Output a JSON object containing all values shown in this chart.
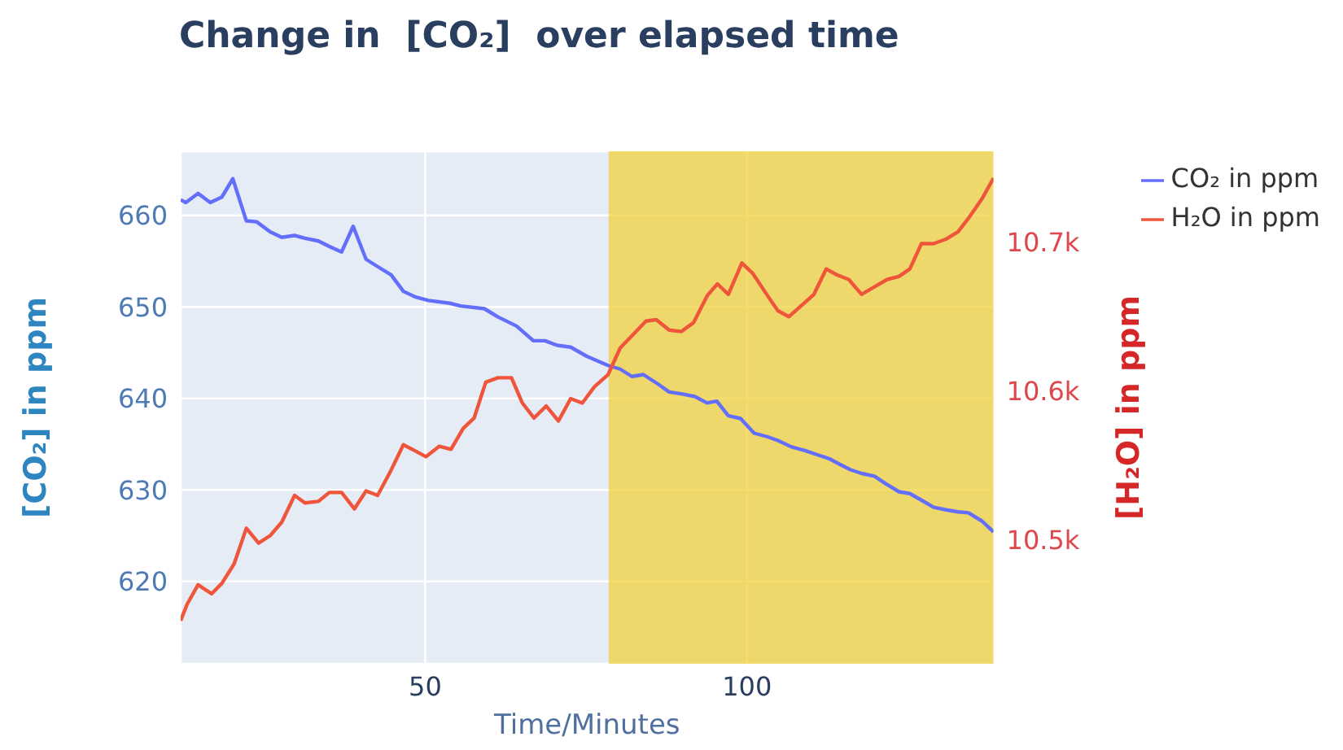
{
  "chart_data": {
    "type": "line",
    "title": "Change in  [CO₂]  over elapsed time",
    "xlabel": "Time/Minutes",
    "ylabel": "[CO₂] in ppm",
    "y2label": "[H₂O] in ppm",
    "xlim": [
      12,
      138.3
    ],
    "xticks": [
      50,
      100
    ],
    "ylim": [
      611,
      667
    ],
    "yticks": [
      620,
      630,
      640,
      650,
      660
    ],
    "y2lim": [
      10417,
      10761
    ],
    "y2ticks": [
      {
        "value": 10500,
        "label": "10.5k"
      },
      {
        "value": 10600,
        "label": "10.6k"
      },
      {
        "value": 10700,
        "label": "10.7k"
      }
    ],
    "grid": true,
    "legend": "top right",
    "marker": "none",
    "line_style": "solid",
    "bands": [
      {
        "axis": "x",
        "from": 78.5,
        "to": 138.3,
        "color": "#f2d23c"
      }
    ],
    "series": [
      {
        "name": "CO₂ in ppm",
        "color": "#636efa",
        "x": [
          12,
          12.8,
          14.7,
          16.6,
          18.4,
          20.1,
          22.2,
          23.8,
          25.9,
          27.7,
          29.7,
          31.3,
          33.4,
          35.1,
          37,
          38.8,
          40.8,
          42.6,
          44.7,
          46.6,
          48.4,
          50.5,
          53.8,
          55.5,
          59.2,
          61.3,
          64.2,
          66.8,
          68.6,
          70.5,
          72.6,
          75.1,
          78.4,
          80.3,
          82.1,
          83.9,
          86.1,
          87.9,
          89.8,
          91.9,
          93.8,
          95.3,
          97.1,
          99,
          101.1,
          103.2,
          104.8,
          106.9,
          109,
          111.1,
          112.8,
          114.4,
          116.1,
          117.8,
          119.8,
          121.5,
          123.6,
          125.3,
          127.3,
          129,
          131.1,
          132.8,
          134.4,
          136.5,
          138.3
        ],
        "values": [
          661.7,
          661.4,
          662.4,
          661.4,
          662.0,
          664.0,
          659.4,
          659.3,
          658.2,
          657.6,
          657.8,
          657.5,
          657.2,
          656.6,
          656.0,
          658.8,
          655.2,
          654.4,
          653.5,
          651.7,
          651.1,
          650.7,
          650.4,
          650.1,
          649.8,
          648.9,
          647.9,
          646.3,
          646.3,
          645.8,
          645.6,
          644.6,
          643.6,
          643.2,
          642.4,
          642.6,
          641.6,
          640.7,
          640.5,
          640.2,
          639.5,
          639.7,
          638.1,
          637.8,
          636.2,
          635.8,
          635.4,
          634.7,
          634.3,
          633.8,
          633.4,
          632.8,
          632.2,
          631.8,
          631.5,
          630.7,
          629.8,
          629.6,
          628.8,
          628.1,
          627.8,
          627.6,
          627.5,
          626.6,
          625.4
        ]
      },
      {
        "name": "H₂O in ppm",
        "color": "#ef553b",
        "axis": "y2",
        "x": [
          12,
          13,
          14.7,
          16.8,
          18.4,
          20.3,
          22.2,
          24.1,
          25.9,
          27.7,
          29.7,
          31.3,
          33.4,
          35.1,
          37,
          39,
          40.8,
          42.6,
          44.7,
          46.6,
          48.4,
          50.1,
          52.2,
          54,
          55.9,
          57.6,
          59.4,
          61.3,
          63.4,
          65.1,
          66.9,
          68.8,
          70.7,
          72.6,
          74.4,
          76.3,
          78.4,
          80.3,
          82.3,
          84.3,
          85.9,
          87.9,
          89.8,
          91.7,
          93.8,
          95.4,
          97.1,
          99.2,
          100.9,
          103.2,
          104.8,
          106.5,
          108.6,
          110.4,
          112.3,
          114,
          115.8,
          117.8,
          119.8,
          121.8,
          123.6,
          125.3,
          127.1,
          129,
          130.9,
          132.8,
          134.4,
          136.5,
          138.3
        ],
        "values": [
          10446,
          10457,
          10470,
          10464,
          10471,
          10484,
          10508,
          10498,
          10503,
          10512,
          10530,
          10525,
          10526,
          10532,
          10532,
          10521,
          10533,
          10530,
          10547,
          10564,
          10560,
          10556,
          10563,
          10561,
          10575,
          10582,
          10606,
          10609,
          10609,
          10592,
          10582,
          10590,
          10580,
          10595,
          10592,
          10603,
          10611,
          10629,
          10638,
          10647,
          10648,
          10641,
          10640,
          10646,
          10664,
          10672,
          10665,
          10686,
          10679,
          10664,
          10654,
          10650,
          10658,
          10665,
          10682,
          10678,
          10675,
          10665,
          10670,
          10675,
          10677,
          10682,
          10699,
          10699,
          10702,
          10707,
          10716,
          10729,
          10743
        ]
      }
    ]
  }
}
